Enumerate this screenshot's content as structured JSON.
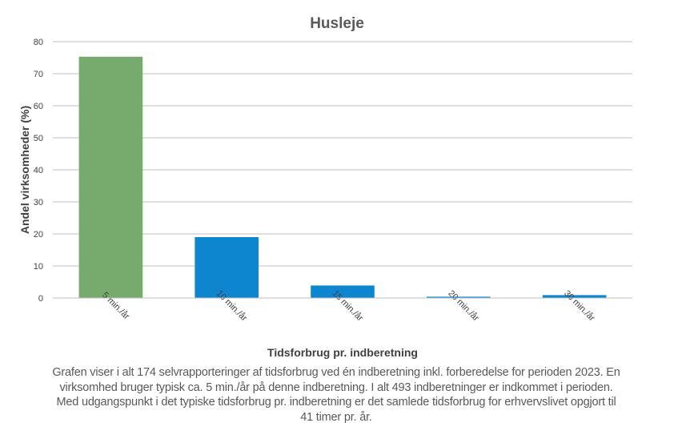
{
  "chart_data": {
    "type": "bar",
    "title": "Husleje",
    "xlabel": "Tidsforbrug pr. indberetning",
    "ylabel": "Andel virksomheder (%)",
    "categories": [
      "5 min./år",
      "10 min./år",
      "15 min./år",
      "20 min./år",
      "30 min./år"
    ],
    "values": [
      75.3,
      19.0,
      3.9,
      0.4,
      0.9
    ],
    "bar_colors": [
      "#77AB6E",
      "#0D86CF",
      "#0D86CF",
      "#0D86CF",
      "#0D86CF"
    ],
    "ylim": [
      0,
      80
    ],
    "yticks": [
      0,
      10,
      20,
      30,
      40,
      50,
      60,
      70,
      80
    ],
    "grid": true,
    "legend": "none"
  },
  "colors": {
    "title": "#595959",
    "axis_text": "#404040",
    "gridline": "#BFBFBF"
  },
  "caption": "Grafen viser i alt 174 selvrapporteringer af tidsforbrug ved én indberetning inkl. forberedelse for perioden 2023. En virksomhed bruger typisk ca. 5 min./år på denne indberetning. I alt 493 indberetninger er indkommet i perioden. Med udgangspunkt i det typiske tidsforbrug pr. indberetning er det samlede tidsforbrug for erhvervslivet opgjort til 41 timer pr. år."
}
